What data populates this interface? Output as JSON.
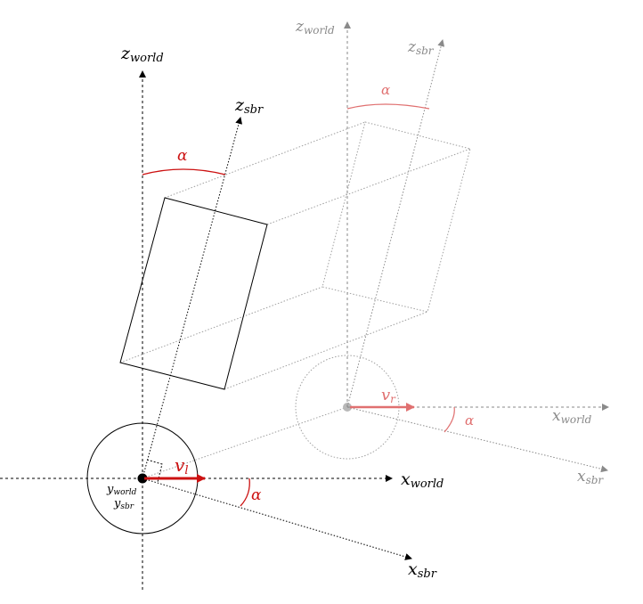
{
  "labels": {
    "z_world_main": "z",
    "z_world_main_sub": "world",
    "z_sbr_main": "z",
    "z_sbr_main_sub": "sbr",
    "x_world_main": "x",
    "x_world_main_sub": "world",
    "x_sbr_main": "x",
    "x_sbr_main_sub": "sbr",
    "y_world": "y",
    "y_world_sub": "world",
    "y_sbr": "y",
    "y_sbr_sub": "sbr",
    "v_left": "v",
    "v_left_sub": "l",
    "alpha_top_left": "α",
    "alpha_bottom_left": "α",
    "z_world_ghost": "z",
    "z_world_ghost_sub": "world",
    "z_sbr_ghost": "z",
    "z_sbr_ghost_sub": "sbr",
    "x_world_ghost": "x",
    "x_world_ghost_sub": "world",
    "x_sbr_ghost": "x",
    "x_sbr_ghost_sub": "sbr",
    "v_right": "v",
    "v_right_sub": "r",
    "alpha_top_right": "α",
    "alpha_bottom_right": "α"
  },
  "colors": {
    "main": "#000000",
    "ghost": "#8a8a8a",
    "accent": "#cc1111",
    "accent_ghost": "#e07070"
  }
}
